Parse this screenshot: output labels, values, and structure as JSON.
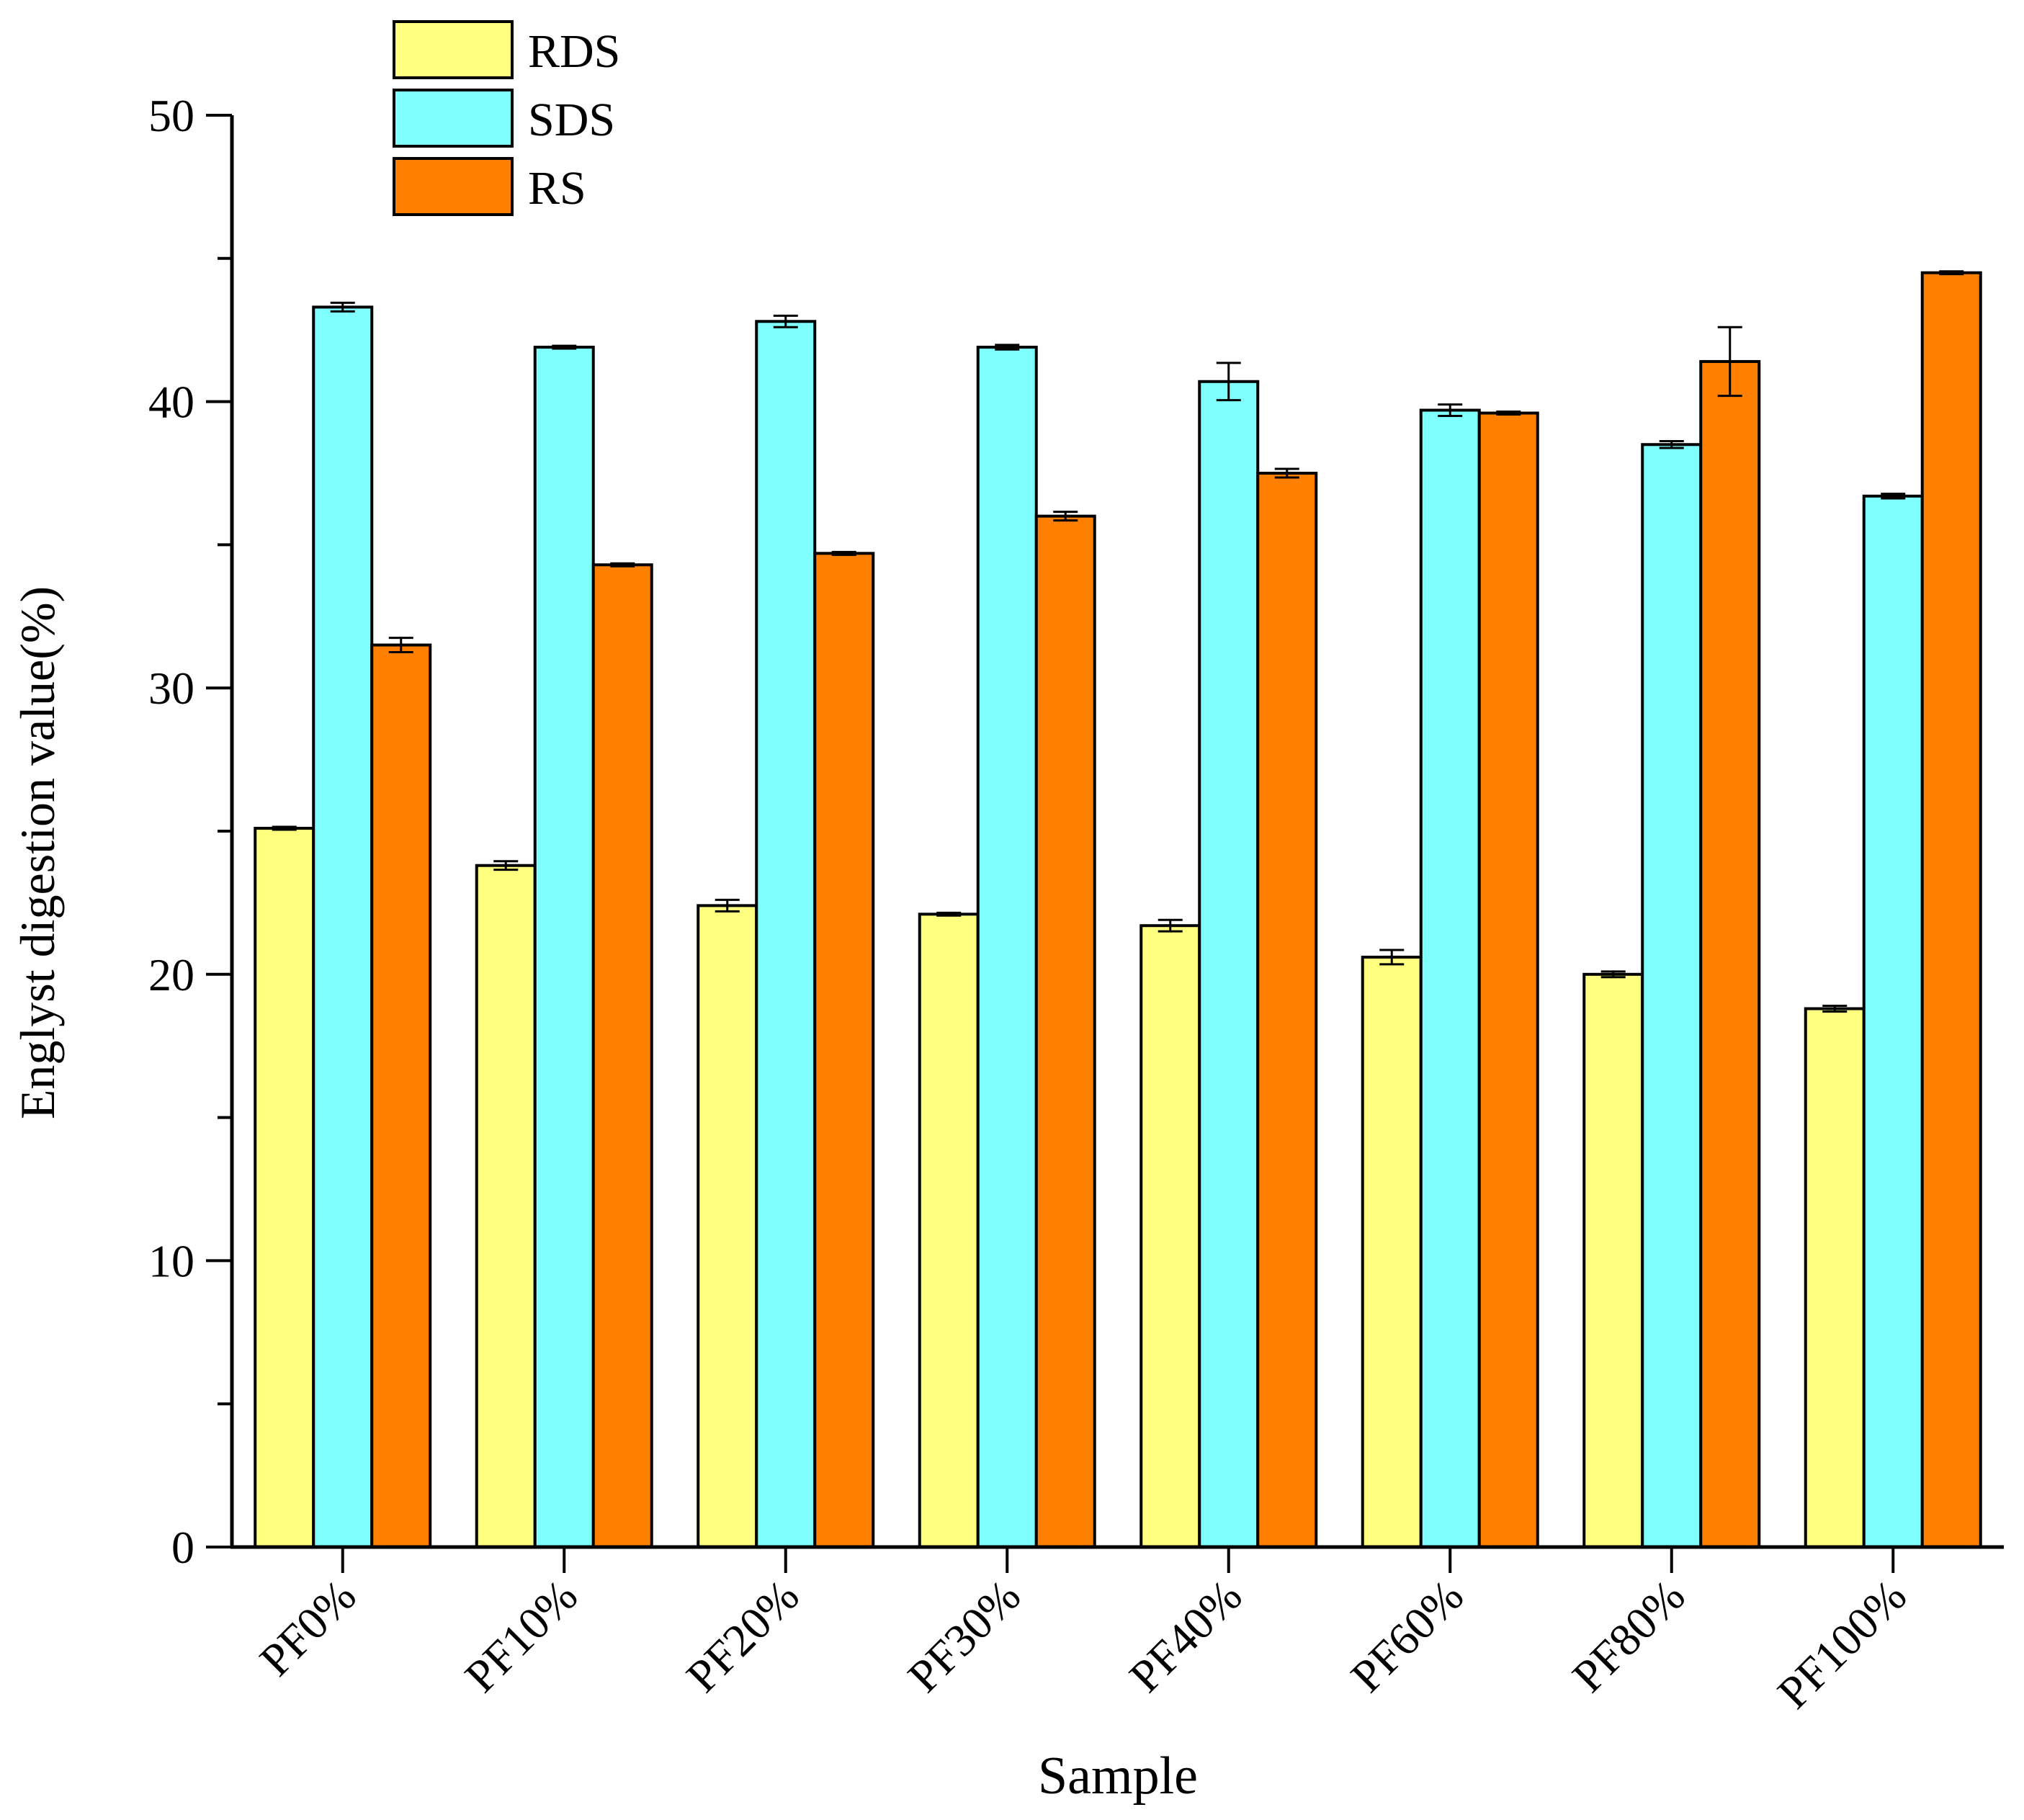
{
  "chart_data": {
    "type": "bar",
    "title": "",
    "xlabel": "Sample",
    "ylabel": "Englyst digestion value(%)",
    "ylim": [
      0,
      50
    ],
    "yticks": [
      0,
      10,
      20,
      30,
      40,
      50
    ],
    "categories": [
      "PF0%",
      "PF10%",
      "PF20%",
      "PF30%",
      "PF40%",
      "PF60%",
      "PF80%",
      "PF100%"
    ],
    "legend_position": "top-left",
    "series": [
      {
        "name": "RDS",
        "color": "#FFFF80",
        "values": [
          25.1,
          23.8,
          22.4,
          22.1,
          21.7,
          20.6,
          20.0,
          18.8
        ],
        "errors": [
          0.05,
          0.15,
          0.2,
          0.05,
          0.2,
          0.25,
          0.1,
          0.1
        ]
      },
      {
        "name": "SDS",
        "color": "#80FFFF",
        "values": [
          43.3,
          41.9,
          42.8,
          41.9,
          40.7,
          39.7,
          38.5,
          36.7
        ],
        "errors": [
          0.15,
          0.05,
          0.2,
          0.08,
          0.65,
          0.2,
          0.12,
          0.08
        ]
      },
      {
        "name": "RS",
        "color": "#FF8000",
        "values": [
          31.5,
          34.3,
          34.7,
          36.0,
          37.5,
          39.6,
          41.4,
          44.5
        ],
        "errors": [
          0.25,
          0.05,
          0.05,
          0.15,
          0.15,
          0.05,
          1.2,
          0.05
        ]
      }
    ]
  }
}
